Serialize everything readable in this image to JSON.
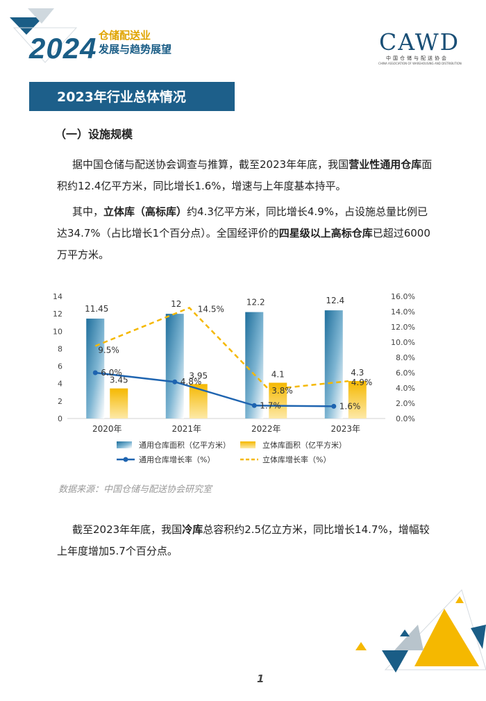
{
  "header": {
    "year": "2024",
    "line1": "仓储配送业",
    "line2": "发展与趋势展望"
  },
  "logo": {
    "text": "CAWD",
    "cn": "中国仓储与配送协会",
    "en": "CHINA ASSOCIATION OF WAREHOUSING AND DISTRIBUTION"
  },
  "section_title": "2023年行业总体情况",
  "subhead": "（一）设施规模",
  "paragraphs": {
    "p1": {
      "a": "据中国仓储与配送协会调查与推算，截至2023年年底，我国",
      "b": "营业性通用仓库",
      "c": "面积约12.4亿平方米，同比增长1.6%，增速与上年度基本持平。"
    },
    "p2": {
      "a": "其中，",
      "b": "立体库（高标库）",
      "c": "约4.3亿平方米，同比增长4.9%，占设施总量比例已达34.7%（占比增长1个百分点）。全国经评价的",
      "d": "四星级以上高标仓库",
      "e": "已超过6000万平方米。"
    },
    "p3": {
      "a": "截至2023年年底，我国",
      "b": "冷库",
      "c": "总容积约2.5亿立方米，同比增长14.7%，增幅较上年度增加5.7个百分点。"
    }
  },
  "chart_data": {
    "type": "bar",
    "categories": [
      "2020年",
      "2021年",
      "2022年",
      "2023年"
    ],
    "series": [
      {
        "name": "通用仓库面积（亿平方米）",
        "kind": "bar",
        "axis": "left",
        "values": [
          11.45,
          12,
          12.2,
          12.4
        ],
        "labels": [
          "11.45",
          "12",
          "12.2",
          "12.4"
        ],
        "color": "#2b7fb0"
      },
      {
        "name": "立体库面积（亿平方米）",
        "kind": "bar",
        "axis": "left",
        "values": [
          3.45,
          3.95,
          4.1,
          4.3
        ],
        "labels": [
          "3.45",
          "3.95",
          "4.1",
          "4.3"
        ],
        "color": "#f5b800"
      },
      {
        "name": "通用仓库增长率（%）",
        "kind": "line",
        "axis": "right",
        "values": [
          6.0,
          4.8,
          1.7,
          1.6
        ],
        "labels": [
          "6.0%",
          "4.8%",
          "1.7%",
          "1.6%"
        ],
        "color": "#1e64b0"
      },
      {
        "name": "立体库增长率（%）",
        "kind": "dashed-line",
        "axis": "right",
        "values": [
          9.5,
          14.5,
          3.8,
          4.9
        ],
        "labels": [
          "9.5%",
          "14.5%",
          "3.8%",
          "4.9%"
        ],
        "color": "#f5b800"
      }
    ],
    "ylim": [
      0,
      14
    ],
    "yticks": [
      "0",
      "2",
      "4",
      "6",
      "8",
      "10",
      "12",
      "14"
    ],
    "y2lim": [
      0,
      16
    ],
    "y2ticks": [
      "0.0%",
      "2.0%",
      "4.0%",
      "6.0%",
      "8.0%",
      "10.0%",
      "12.0%",
      "14.0%",
      "16.0%"
    ],
    "legend": "bottom",
    "grid": false
  },
  "source": "数据来源：中国仓储与配送协会研究室",
  "page_number": "1",
  "colors": {
    "brand_blue": "#1d5f8a",
    "accent_yellow": "#f5b800"
  }
}
